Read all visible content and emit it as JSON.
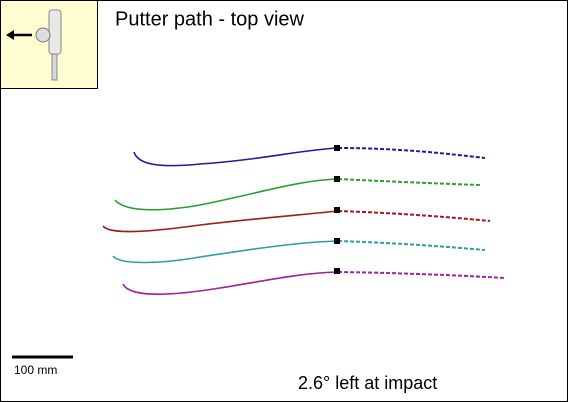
{
  "header": {
    "title": "Putter path - top view"
  },
  "scale": {
    "label": "100 mm"
  },
  "annotation": {
    "text": "2.6° left at impact"
  }
}
